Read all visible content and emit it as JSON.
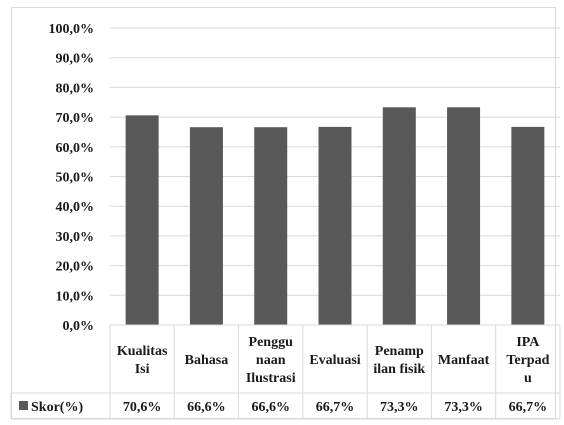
{
  "chart_data": {
    "type": "bar",
    "categories": [
      [
        "Kualitas",
        "Isi"
      ],
      [
        "Bahasa"
      ],
      [
        "Penggu",
        "naan",
        "Ilustrasi"
      ],
      [
        "Evaluasi"
      ],
      [
        "Penamp",
        "ilan fisik"
      ],
      [
        "Manfaat"
      ],
      [
        "IPA",
        "Terpad",
        "u"
      ]
    ],
    "series": [
      {
        "name": "Skor(%)",
        "values": [
          70.6,
          66.6,
          66.6,
          66.7,
          73.3,
          73.3,
          66.7
        ],
        "value_labels": [
          "70,6%",
          "66,6%",
          "66,6%",
          "66,7%",
          "73,3%",
          "73,3%",
          "66,7%"
        ],
        "color": "#595959"
      }
    ],
    "y_ticks": [
      "0,0%",
      "10,0%",
      "20,0%",
      "30,0%",
      "40,0%",
      "50,0%",
      "60,0%",
      "70,0%",
      "80,0%",
      "90,0%",
      "100,0%"
    ],
    "ylim": [
      0,
      100
    ],
    "grid": true,
    "legend": "data-table-row",
    "data_table": true
  }
}
